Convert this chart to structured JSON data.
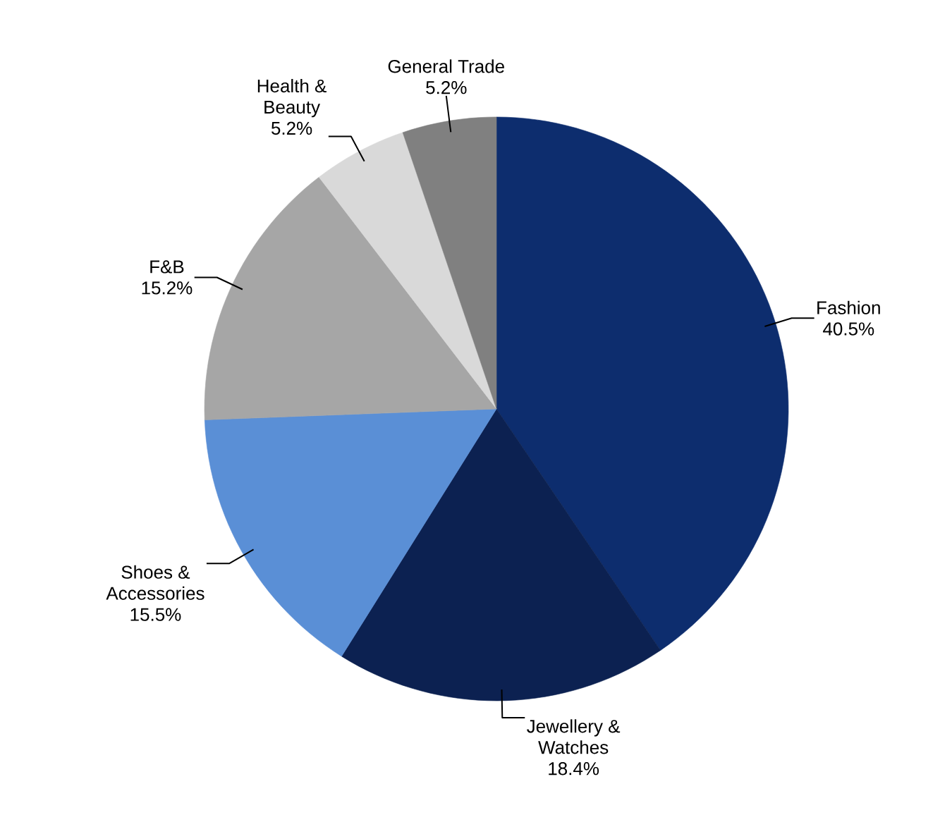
{
  "chart_data": {
    "type": "pie",
    "categories": [
      "Fashion",
      "Jewellery & Watches",
      "Shoes & Accessories",
      "F&B",
      "Health & Beauty",
      "General Trade"
    ],
    "values": [
      40.5,
      18.4,
      15.5,
      15.2,
      5.2,
      5.2
    ],
    "value_labels": [
      "40.5%",
      "18.4%",
      "15.5%",
      "15.2%",
      "5.2%",
      "5.2%"
    ],
    "colors": [
      "#0d2d6e",
      "#0c2151",
      "#5a8fd6",
      "#a6a6a6",
      "#d9d9d9",
      "#808080"
    ]
  }
}
